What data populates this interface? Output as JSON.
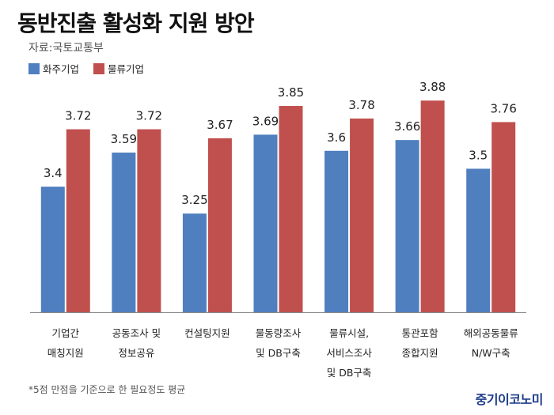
{
  "title": "동반진출 활성화 지원 방안",
  "source": "자료:국토교통부",
  "footnote": "*5점 만점을 기준으로 한 필요정도 평균",
  "brand": "중기이코노미",
  "colors": {
    "series1": "#4f7fbf",
    "series2": "#c0504d"
  },
  "chart_data": {
    "type": "bar",
    "categories": [
      [
        "기업간",
        "매칭지원"
      ],
      [
        "공동조사 및",
        "정보공유"
      ],
      [
        "컨설팅지원"
      ],
      [
        "물동량조사",
        "및 DB구축"
      ],
      [
        "물류시설,",
        "서비스조사",
        "및 DB구축"
      ],
      [
        "통관포함",
        "종합지원"
      ],
      [
        "해외공동물류",
        "N/W구축"
      ]
    ],
    "series": [
      {
        "name": "화주기업",
        "values": [
          3.4,
          3.59,
          3.25,
          3.69,
          3.6,
          3.66,
          3.5
        ]
      },
      {
        "name": "물류기업",
        "values": [
          3.72,
          3.72,
          3.67,
          3.85,
          3.78,
          3.88,
          3.76
        ]
      }
    ],
    "ylim": [
      2.7,
      4.0
    ],
    "grid": false,
    "legend": "top-left"
  }
}
